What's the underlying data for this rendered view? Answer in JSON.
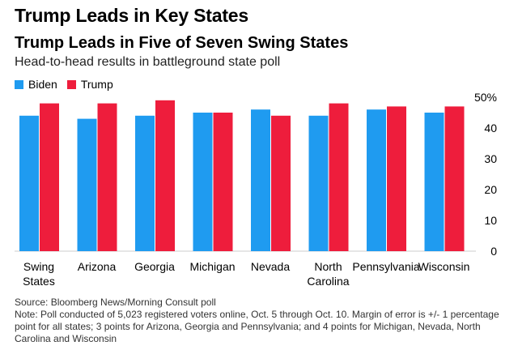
{
  "headline": "Trump Leads in Key States",
  "chart_data": {
    "type": "bar",
    "title": "Trump Leads in Five of Seven Swing States",
    "subtitle": "Head-to-head results in battleground state poll",
    "categories": [
      [
        "Swing",
        "States"
      ],
      [
        "Arizona"
      ],
      [
        "Georgia"
      ],
      [
        "Michigan"
      ],
      [
        "Nevada"
      ],
      [
        "North",
        "Carolina"
      ],
      [
        "Pennsylvania"
      ],
      [
        "Wisconsin"
      ]
    ],
    "series": [
      {
        "name": "Biden",
        "color": "#1f9bf0",
        "values": [
          44,
          43,
          44,
          45,
          46,
          44,
          46,
          45
        ]
      },
      {
        "name": "Trump",
        "color": "#ee1d3c",
        "values": [
          48,
          48,
          49,
          45,
          44,
          48,
          47,
          47
        ]
      }
    ],
    "ylim": [
      0,
      50
    ],
    "yticks": [
      0,
      10,
      20,
      30,
      40,
      50
    ],
    "ytick_labels": [
      "0",
      "10",
      "20",
      "30",
      "40",
      "50%"
    ],
    "xlabel": "",
    "ylabel": "",
    "legend_position": "top-left"
  },
  "footnotes": {
    "source": "Source: Bloomberg News/Morning Consult poll",
    "note": "Note: Poll conducted of 5,023 registered voters online, Oct. 5 through Oct. 10. Margin of error is +/- 1 percentage point for all states; 3 points for Arizona, Georgia and Pennsylvania; and 4 points for Michigan, Nevada, North Carolina and Wisconsin"
  }
}
